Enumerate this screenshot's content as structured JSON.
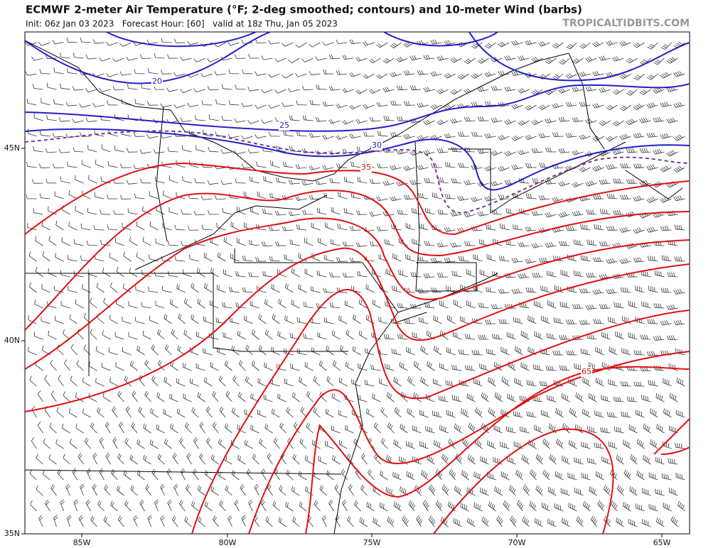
{
  "header": {
    "title": "ECMWF 2-meter Air Temperature (°F; 2-deg smoothed; contours) and 10-meter Wind (barbs)",
    "subtitle": "Init: 06z Jan 03 2023   Forecast Hour: [60]   valid at 18z Thu, Jan 05 2023",
    "brand": "TROPICALTIDBITS.COM"
  },
  "map": {
    "lon_labels": [
      "85W",
      "80W",
      "75W",
      "70W",
      "65W"
    ],
    "lat_labels": [
      "45N",
      "40N",
      "35N"
    ],
    "contour_labels": [
      "20",
      "25",
      "30",
      "35",
      "65"
    ]
  }
}
